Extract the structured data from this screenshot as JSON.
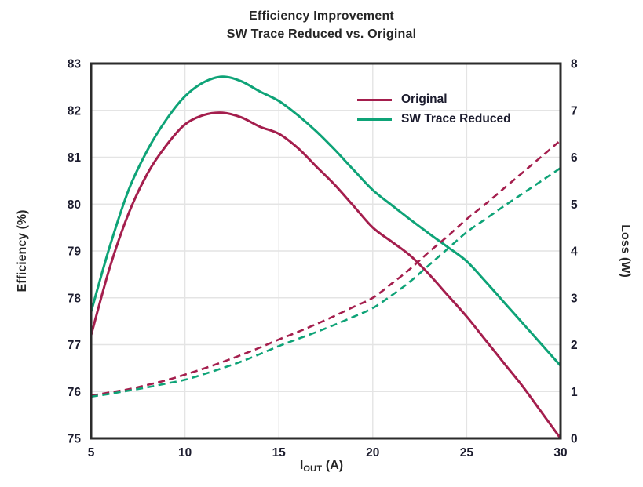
{
  "title": {
    "line1": "Efficiency Improvement",
    "line2": "SW Trace Reduced vs. Original"
  },
  "legend": {
    "entries": [
      {
        "label": "Original",
        "color": "#A41E4D"
      },
      {
        "label": "SW Trace Reduced",
        "color": "#0EA377"
      }
    ]
  },
  "colors": {
    "original": "#A41E4D",
    "sw_trace_reduced": "#0EA377",
    "tick_text": "#1c1c2e",
    "axis_spine": "#2b2b2b",
    "gridline": "#e4e4e4",
    "background": "#ffffff"
  },
  "chart_data": {
    "type": "line",
    "title": "Efficiency Improvement",
    "subtitle": "SW Trace Reduced vs. Original",
    "xlabel_parts": {
      "base": "I",
      "sub": "OUT",
      "unit": " (A)"
    },
    "ylabel_left": "Efficiency (%)",
    "ylabel_right": "Loss (W)",
    "grid": true,
    "legend_position": "upper-right-inside",
    "x_axis": {
      "min": 5,
      "max": 30,
      "ticks": [
        5,
        10,
        15,
        20,
        25,
        30
      ]
    },
    "y_left": {
      "min": 75,
      "max": 83,
      "ticks": [
        75,
        76,
        77,
        78,
        79,
        80,
        81,
        82,
        83
      ]
    },
    "y_right": {
      "min": 0,
      "max": 8,
      "ticks": [
        0,
        1,
        2,
        3,
        4,
        5,
        6,
        7,
        8
      ]
    },
    "x": [
      5,
      6,
      7,
      8,
      9,
      10,
      11,
      12,
      13,
      14,
      15,
      16,
      17,
      18,
      19,
      20,
      21,
      22,
      23,
      24,
      25,
      26,
      27,
      28,
      29,
      30
    ],
    "series": [
      {
        "name": "Original",
        "legend": "Original",
        "axis": "left",
        "style": "solid",
        "color": "#A41E4D",
        "values": [
          77.2,
          78.65,
          79.8,
          80.65,
          81.25,
          81.7,
          81.9,
          81.95,
          81.85,
          81.65,
          81.5,
          81.2,
          80.8,
          80.4,
          79.95,
          79.5,
          79.2,
          78.9,
          78.5,
          78.05,
          77.6,
          77.1,
          76.6,
          76.1,
          75.55,
          75.0
        ]
      },
      {
        "name": "SW Trace Reduced",
        "legend": "SW Trace Reduced",
        "axis": "left",
        "style": "solid",
        "color": "#0EA377",
        "values": [
          77.7,
          79.1,
          80.3,
          81.15,
          81.8,
          82.3,
          82.6,
          82.72,
          82.62,
          82.4,
          82.2,
          81.9,
          81.55,
          81.15,
          80.72,
          80.3,
          79.98,
          79.67,
          79.37,
          79.08,
          78.78,
          78.35,
          77.9,
          77.45,
          77.0,
          76.55
        ]
      },
      {
        "name": "Original (Loss)",
        "legend": "Original",
        "axis": "right",
        "style": "dashed",
        "color": "#A41E4D",
        "values": [
          0.91,
          0.98,
          1.05,
          1.14,
          1.24,
          1.36,
          1.49,
          1.63,
          1.78,
          1.94,
          2.11,
          2.27,
          2.44,
          2.62,
          2.81,
          3.0,
          3.3,
          3.62,
          3.98,
          4.32,
          4.68,
          5.0,
          5.34,
          5.68,
          6.02,
          6.36
        ]
      },
      {
        "name": "SW Trace Reduced (Loss)",
        "legend": "SW Trace Reduced",
        "axis": "right",
        "style": "dashed",
        "color": "#0EA377",
        "values": [
          0.89,
          0.95,
          1.02,
          1.09,
          1.17,
          1.25,
          1.37,
          1.5,
          1.64,
          1.8,
          1.97,
          2.12,
          2.27,
          2.43,
          2.6,
          2.78,
          3.05,
          3.35,
          3.7,
          4.05,
          4.4,
          4.68,
          4.96,
          5.23,
          5.5,
          5.77
        ]
      }
    ]
  }
}
